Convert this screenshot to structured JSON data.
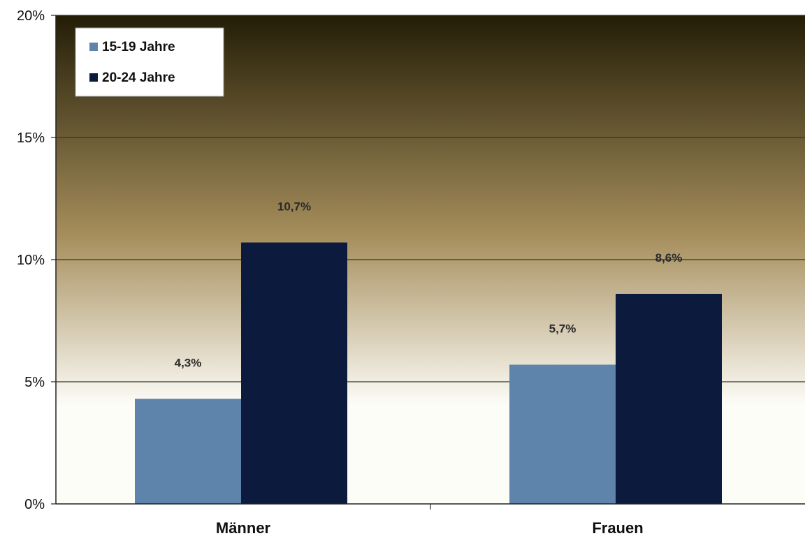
{
  "chart_data": {
    "type": "bar",
    "categories": [
      "Männer",
      "Frauen"
    ],
    "series": [
      {
        "name": "15-19 Jahre",
        "values": [
          4.3,
          5.7
        ],
        "labels": [
          "4,3%",
          "5,7%"
        ],
        "color": "#5f84ac"
      },
      {
        "name": "20-24 Jahre",
        "values": [
          10.7,
          8.6
        ],
        "labels": [
          "10,7%",
          "8,6%"
        ],
        "color": "#0c1a3e"
      }
    ],
    "ylim": [
      0,
      20
    ],
    "yticks": [
      0,
      5,
      10,
      15,
      20
    ],
    "ytick_labels": [
      "0%",
      "5%",
      "10%",
      "15%",
      "20%"
    ],
    "grid": true,
    "legend_position": "top-left",
    "title": "",
    "xlabel": "",
    "ylabel": ""
  },
  "colors": {
    "background_top": "#231d06",
    "background_mid": "#a68e5c",
    "background_bottom": "#fdfdf8",
    "gridline": "#3a3320"
  }
}
